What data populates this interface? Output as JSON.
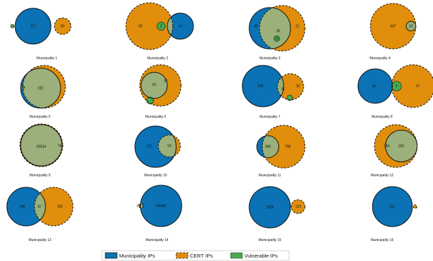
{
  "colors": {
    "municipality": "#0a72b5",
    "cert": "#e08e0b",
    "overlap": "#9bb07a",
    "vulnerable": "#7fd16a",
    "stroke": "#111111"
  },
  "legend": [
    {
      "label": "Municipality IPs",
      "kind": "municipality"
    },
    {
      "label": "CERT IPs",
      "kind": "cert"
    },
    {
      "label": "Vulnerable IPs",
      "kind": "vulnerable"
    }
  ],
  "panels": [
    {
      "title": "Municipality 1",
      "labels": [
        "117",
        "65"
      ]
    },
    {
      "title": "Municipality 2",
      "labels": [
        "30",
        "2",
        "14"
      ]
    },
    {
      "title": "Municipality 3",
      "labels": [
        "45",
        "38",
        "21",
        "16"
      ]
    },
    {
      "title": "Municipality 4",
      "labels": [
        "637",
        "32"
      ]
    },
    {
      "title": "Municipality 5",
      "labels": [
        "252"
      ]
    },
    {
      "title": "Municipality 6",
      "labels": [
        "63",
        "97"
      ]
    },
    {
      "title": "Municipality 7",
      "labels": [
        "109",
        "31",
        "32"
      ]
    },
    {
      "title": "Municipality 8",
      "labels": [
        "36",
        "5",
        "47"
      ]
    },
    {
      "title": "Municipality 9",
      "labels": [
        "65534",
        "768"
      ]
    },
    {
      "title": "Municipality 10",
      "labels": [
        "277",
        "59"
      ]
    },
    {
      "title": "Municipality 11",
      "labels": [
        "288",
        "798"
      ]
    },
    {
      "title": "Municipality 12",
      "labels": [
        "256",
        "256"
      ]
    },
    {
      "title": "Municipality 13",
      "labels": [
        "146",
        "32",
        "155"
      ]
    },
    {
      "title": "Municipality 14",
      "labels": [
        "30",
        "64408"
      ]
    },
    {
      "title": "Municipality 15",
      "labels": [
        "1024",
        "123"
      ]
    },
    {
      "title": "Municipality 16",
      "labels": [
        "512"
      ]
    }
  ]
}
